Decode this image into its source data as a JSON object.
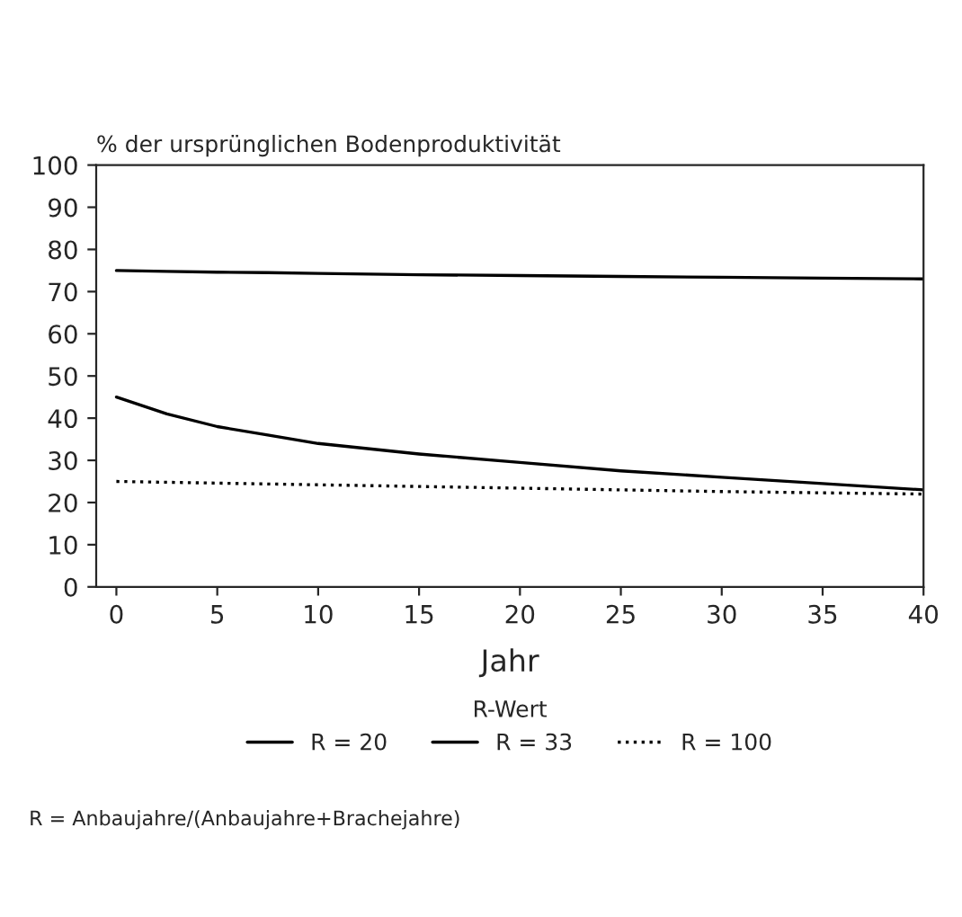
{
  "chart_data": {
    "type": "line",
    "ylabel": "% der ursprünglichen Bodenproduktivität",
    "xlabel": "Jahr",
    "legend_title": "R-Wert",
    "legend": "bottom",
    "grid": false,
    "marker": "none",
    "x": [
      0,
      2.5,
      5,
      7.5,
      10,
      15,
      20,
      25,
      30,
      35,
      40
    ],
    "xlim": [
      -1,
      40
    ],
    "ylim": [
      0,
      100
    ],
    "xticks": [
      0,
      5,
      10,
      15,
      20,
      25,
      30,
      35,
      40
    ],
    "yticks": [
      0,
      10,
      20,
      30,
      40,
      50,
      60,
      70,
      80,
      90,
      100
    ],
    "series": [
      {
        "name": "R = 20",
        "color": "#000000",
        "line_style": "solid",
        "values": [
          75,
          74.8,
          74.6,
          74.5,
          74.3,
          74,
          73.8,
          73.6,
          73.4,
          73.2,
          73
        ]
      },
      {
        "name": "R = 33",
        "color": "#000000",
        "line_style": "solid",
        "values": [
          45,
          41,
          38,
          36,
          34,
          31.5,
          29.5,
          27.5,
          26,
          24.5,
          23
        ]
      },
      {
        "name": "R = 100",
        "color": "#000000",
        "line_style": "dotted",
        "values": [
          25,
          24.8,
          24.6,
          24.4,
          24.2,
          23.8,
          23.4,
          23,
          22.6,
          22.3,
          22
        ]
      }
    ],
    "annotations": [
      "R = Anbaujahre/(Anbaujahre+Brachejahre)"
    ]
  }
}
